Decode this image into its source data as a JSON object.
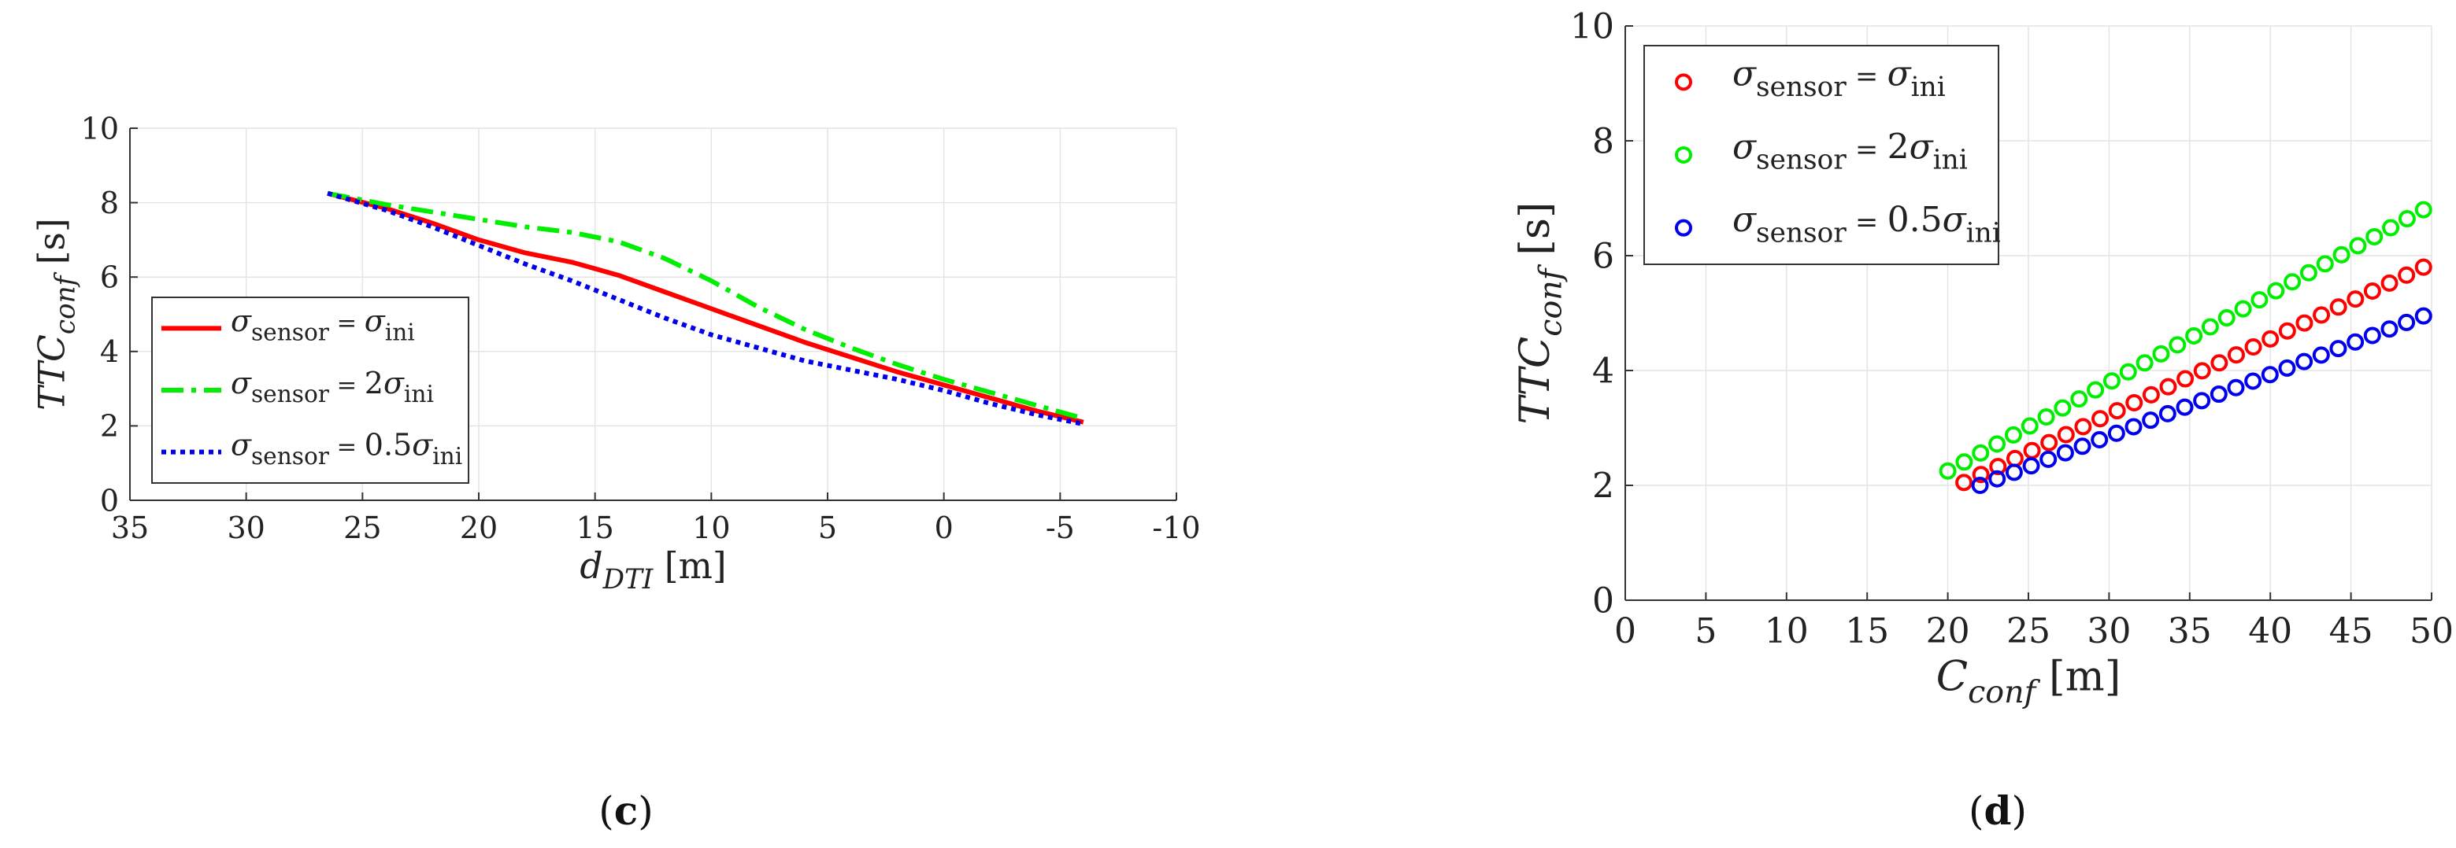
{
  "chart_data": [
    {
      "type": "line",
      "panel_label": "c",
      "xlabel": {
        "var": "d",
        "sub": "DTI",
        "unit": "[m]"
      },
      "ylabel": {
        "var": "TTC",
        "sub": "conf",
        "unit": "[s]"
      },
      "xlim": [
        35,
        -10
      ],
      "ylim": [
        0,
        10
      ],
      "x_reversed": true,
      "xticks": [
        35,
        30,
        25,
        20,
        15,
        10,
        5,
        0,
        -5,
        -10
      ],
      "xtick_labels": [
        "35",
        "30",
        "25",
        "20",
        "15",
        "10",
        "5",
        "0",
        "-5",
        "-10"
      ],
      "yticks": [
        0,
        2,
        4,
        6,
        8,
        10
      ],
      "ytick_labels": [
        "0",
        "2",
        "4",
        "6",
        "8",
        "10"
      ],
      "grid": true,
      "legend_position": "left",
      "series": [
        {
          "name": "σsensor = σini",
          "legend": {
            "lhs_sub": "sensor",
            "coef": "",
            "rhs_sub": "ini"
          },
          "color": "#ff0000",
          "style": "solid",
          "x": [
            26.5,
            24,
            22,
            20,
            18,
            16,
            14,
            12,
            10,
            8,
            6,
            4,
            2,
            0,
            -2,
            -4,
            -6
          ],
          "y": [
            8.25,
            7.85,
            7.45,
            7.0,
            6.65,
            6.4,
            6.05,
            5.6,
            5.15,
            4.7,
            4.25,
            3.85,
            3.45,
            3.1,
            2.75,
            2.4,
            2.1
          ]
        },
        {
          "name": "σsensor = 2σini",
          "legend": {
            "lhs_sub": "sensor",
            "coef": "2",
            "rhs_sub": "ini"
          },
          "color": "#00ee00",
          "style": "dashdot",
          "x": [
            26.5,
            24,
            22,
            20,
            18,
            16,
            14,
            12,
            10,
            8,
            6,
            4,
            2,
            0,
            -2,
            -4,
            -6
          ],
          "y": [
            8.25,
            7.95,
            7.75,
            7.55,
            7.35,
            7.2,
            6.95,
            6.5,
            5.9,
            5.2,
            4.6,
            4.1,
            3.65,
            3.25,
            2.9,
            2.55,
            2.2
          ]
        },
        {
          "name": "σsensor = 0.5σini",
          "legend": {
            "lhs_sub": "sensor",
            "coef": "0.5",
            "rhs_sub": "ini"
          },
          "color": "#0000ee",
          "style": "dotted",
          "x": [
            26.5,
            24,
            22,
            20,
            18,
            16,
            14,
            12,
            10,
            8,
            6,
            4,
            2,
            0,
            -2,
            -4,
            -6
          ],
          "y": [
            8.25,
            7.8,
            7.35,
            6.85,
            6.35,
            5.9,
            5.4,
            4.9,
            4.45,
            4.1,
            3.75,
            3.5,
            3.25,
            2.95,
            2.6,
            2.3,
            2.05
          ]
        }
      ]
    },
    {
      "type": "scatter",
      "panel_label": "d",
      "xlabel": {
        "var": "C",
        "sub": "conf",
        "unit": "[m]"
      },
      "ylabel": {
        "var": "TTC",
        "sub": "conf",
        "unit": "[s]"
      },
      "xlim": [
        0,
        50
      ],
      "ylim": [
        0,
        10
      ],
      "x_reversed": false,
      "xticks": [
        0,
        5,
        10,
        15,
        20,
        25,
        30,
        35,
        40,
        45,
        50
      ],
      "xtick_labels": [
        "0",
        "5",
        "10",
        "15",
        "20",
        "25",
        "30",
        "35",
        "40",
        "45",
        "50"
      ],
      "yticks": [
        0,
        2,
        4,
        6,
        8,
        10
      ],
      "ytick_labels": [
        "0",
        "2",
        "4",
        "6",
        "8",
        "10"
      ],
      "grid": true,
      "legend_position": "top-left",
      "series": [
        {
          "name": "σsensor = σini",
          "legend": {
            "lhs_sub": "sensor",
            "coef": "",
            "rhs_sub": "ini"
          },
          "color": "#ff0000",
          "marker": "circle-open",
          "x_start": 21,
          "x_end": 49.5,
          "y_start": 2.05,
          "y_end": 5.8,
          "count": 28
        },
        {
          "name": "σsensor = 2σini",
          "legend": {
            "lhs_sub": "sensor",
            "coef": "2",
            "rhs_sub": "ini"
          },
          "color": "#00ee00",
          "marker": "circle-open",
          "x_start": 20,
          "x_end": 49.5,
          "y_start": 2.25,
          "y_end": 6.8,
          "count": 30
        },
        {
          "name": "σsensor = 0.5σini",
          "legend": {
            "lhs_sub": "sensor",
            "coef": "0.5",
            "rhs_sub": "ini"
          },
          "color": "#0000ee",
          "marker": "circle-open",
          "x_start": 22,
          "x_end": 49.5,
          "y_start": 2.0,
          "y_end": 4.95,
          "count": 27
        }
      ]
    }
  ]
}
